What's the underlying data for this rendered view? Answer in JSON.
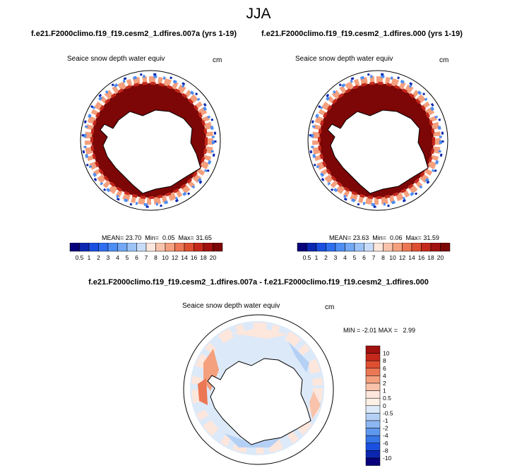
{
  "title": "JJA",
  "panels": [
    {
      "run": "f.e21.F2000climo.f19_f19.cesm2_1.dfires.007a (yrs 1-19)",
      "variable": "Seaice snow depth water equiv",
      "units": "cm",
      "stats": "MEAN= 23.70  Min=  0.05  Max= 31.65",
      "mean": 23.7,
      "min": 0.05,
      "max": 31.65
    },
    {
      "run": "f.e21.F2000climo.f19_f19.cesm2_1.dfires.000 (yrs 1-19)",
      "variable": "Seaice snow depth water equiv",
      "units": "cm",
      "stats": "MEAN= 23.63  Min=  0.06  Max= 31.59",
      "mean": 23.63,
      "min": 0.06,
      "max": 31.59
    }
  ],
  "abs_colorbar": {
    "labels": [
      "0.5",
      "1",
      "2",
      "3",
      "4",
      "5",
      "6",
      "7",
      "8",
      "10",
      "12",
      "14",
      "16",
      "18",
      "20"
    ],
    "colors": [
      "#08007a",
      "#0b27b0",
      "#1a4fe0",
      "#2e6ff0",
      "#4e8ef3",
      "#72a8f5",
      "#9cc3f7",
      "#c7dcf8",
      "#fde6dc",
      "#f9c3ab",
      "#f4a07e",
      "#ec7754",
      "#de4f31",
      "#c4281b",
      "#a1110f",
      "#7d0606"
    ]
  },
  "difference": {
    "title": "f.e21.F2000climo.f19_f19.cesm2_1.dfires.007a - f.e21.F2000climo.f19_f19.cesm2_1.dfires.000",
    "variable": "Seaice snow depth water equiv",
    "units": "cm",
    "stats": "MIN = -2.01 MAX =   2.99",
    "min": -2.01,
    "max": 2.99
  },
  "diff_colorbar": {
    "labels": [
      "10",
      "8",
      "6",
      "4",
      "2",
      "1",
      "0.5",
      "0",
      "-0.5",
      "-1",
      "-2",
      "-4",
      "-6",
      "-8",
      "-10"
    ],
    "colors": [
      "#a1110f",
      "#c4281b",
      "#de4f31",
      "#ec7754",
      "#f4a07e",
      "#f9c3ab",
      "#fde6dc",
      "#fdf0e6",
      "#dce9f8",
      "#b5d0f5",
      "#8db7f2",
      "#5f97ee",
      "#3676e6",
      "#1a4fe0",
      "#0b27b0",
      "#08007a"
    ]
  }
}
